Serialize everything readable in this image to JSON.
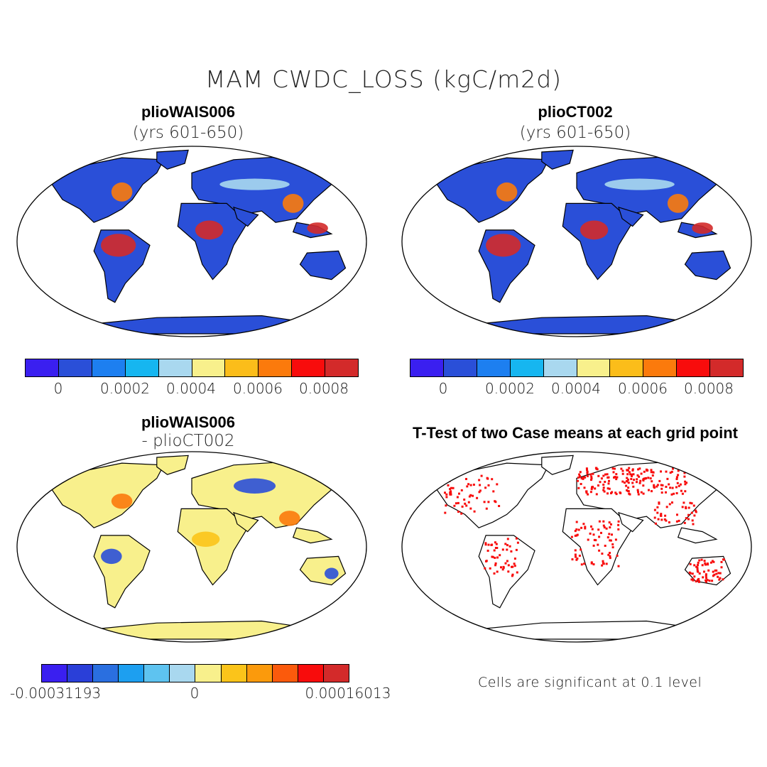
{
  "title": "MAM CWDC_LOSS (kgC/m2d)",
  "panels": {
    "top_left": {
      "title": "plioWAIS006",
      "subtitle": "(yrs 601-650)"
    },
    "top_right": {
      "title": "plioCT002",
      "subtitle": "(yrs 601-650)"
    },
    "bottom_left": {
      "title": "plioWAIS006",
      "subtitle": "- plioCT002"
    },
    "bottom_right": {
      "title": "T-Test of two Case means at each grid point"
    }
  },
  "colorbar_top": {
    "colors": [
      "#3a1ff0",
      "#2a4fd8",
      "#1d7ff0",
      "#16b6f0",
      "#a9d8ef",
      "#f8f08c",
      "#fbbd1a",
      "#fb7a0c",
      "#f80c0c",
      "#d32a2a"
    ],
    "labels": [
      "0",
      "0.0002",
      "0.0004",
      "0.0006",
      "0.0008"
    ]
  },
  "colorbar_diff": {
    "colors": [
      "#3a1ff0",
      "#2a3fd8",
      "#2a6fe0",
      "#1d9ff0",
      "#5ec3f0",
      "#a9d8ef",
      "#f8f08c",
      "#fbc41a",
      "#fb9a0c",
      "#fb5a0c",
      "#f80c0c",
      "#d32a2a"
    ],
    "labels": [
      "-0.00031193",
      "0",
      "0.00016013"
    ]
  },
  "significance_note": "Cells are significant at 0.1 level",
  "colors": {
    "land": "#2a4fd8",
    "diff_land": "#f8f08c",
    "signif": "#f80c0c"
  }
}
